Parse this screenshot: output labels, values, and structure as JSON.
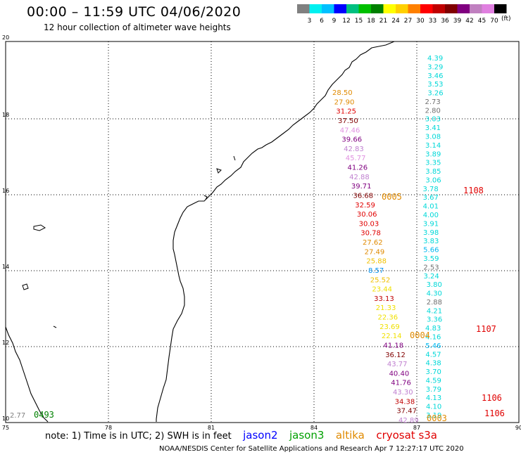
{
  "header": {
    "title": "00:00 – 11:59 UTC 04/06/2020",
    "subtitle": "12 hour collection of altimeter wave heights"
  },
  "legend": {
    "colors": [
      "#808080",
      "#00f0f0",
      "#00c0ff",
      "#0000ff",
      "#00c080",
      "#00c000",
      "#008000",
      "#ffff00",
      "#ffd000",
      "#ff8000",
      "#ff0000",
      "#c00000",
      "#800000",
      "#800080",
      "#c080c0",
      "#e080e0",
      "#000000"
    ],
    "labels": [
      "3",
      "6",
      "9",
      "12",
      "15",
      "18",
      "21",
      "24",
      "27",
      "30",
      "33",
      "36",
      "39",
      "42",
      "45",
      "70"
    ],
    "units": "(ft)"
  },
  "axes": {
    "x_ticks": [
      "75",
      "78",
      "81",
      "84",
      "87",
      "90"
    ],
    "y_ticks": [
      "10",
      "12",
      "14",
      "16",
      "18",
      "20"
    ]
  },
  "tracks": {
    "cryosat_s3a": [
      {
        "v": "4.39",
        "c": "#00d8d8"
      },
      {
        "v": "3.29",
        "c": "#00d8d8"
      },
      {
        "v": "3.46",
        "c": "#00d8d8"
      },
      {
        "v": "3.53",
        "c": "#00d8d8"
      },
      {
        "v": "3.26",
        "c": "#00d8d8"
      },
      {
        "v": "2.73",
        "c": "#707070"
      },
      {
        "v": "2.80",
        "c": "#707070"
      },
      {
        "v": "3.03",
        "c": "#00d8d8"
      },
      {
        "v": "3.41",
        "c": "#00d8d8"
      },
      {
        "v": "3.08",
        "c": "#00d8d8"
      },
      {
        "v": "3.14",
        "c": "#00d8d8"
      },
      {
        "v": "3.89",
        "c": "#00d8d8"
      },
      {
        "v": "3.35",
        "c": "#00d8d8"
      },
      {
        "v": "3.85",
        "c": "#00d8d8"
      },
      {
        "v": "3.06",
        "c": "#00d8d8"
      },
      {
        "v": "3.78",
        "c": "#00d8d8"
      },
      {
        "v": "3.67",
        "c": "#00d8d8"
      },
      {
        "v": "4.01",
        "c": "#00d8d8"
      },
      {
        "v": "4.00",
        "c": "#00d8d8"
      },
      {
        "v": "3.91",
        "c": "#00d8d8"
      },
      {
        "v": "3.98",
        "c": "#00d8d8"
      },
      {
        "v": "3.83",
        "c": "#00d8d8"
      },
      {
        "v": "5.66",
        "c": "#00b8f0"
      },
      {
        "v": "3.59",
        "c": "#00d8d8"
      },
      {
        "v": "2.53",
        "c": "#707070"
      },
      {
        "v": "3.24",
        "c": "#00d8d8"
      },
      {
        "v": "3.80",
        "c": "#00d8d8"
      },
      {
        "v": "4.30",
        "c": "#00d8d8"
      },
      {
        "v": "2.88",
        "c": "#707070"
      },
      {
        "v": "4.21",
        "c": "#00d8d8"
      },
      {
        "v": "3.36",
        "c": "#00d8d8"
      },
      {
        "v": "4.83",
        "c": "#00d8d8"
      },
      {
        "v": "4.16",
        "c": "#00d8d8"
      },
      {
        "v": "5.46",
        "c": "#00b8f0"
      },
      {
        "v": "4.57",
        "c": "#00d8d8"
      },
      {
        "v": "4.38",
        "c": "#00d8d8"
      },
      {
        "v": "3.70",
        "c": "#00d8d8"
      },
      {
        "v": "4.59",
        "c": "#00d8d8"
      },
      {
        "v": "3.79",
        "c": "#00d8d8"
      },
      {
        "v": "4.13",
        "c": "#00d8d8"
      },
      {
        "v": "4.10",
        "c": "#00d8d8"
      },
      {
        "v": "3.19",
        "c": "#00d8d8"
      }
    ],
    "altika": [
      {
        "v": "28.50",
        "c": "#e08a00"
      },
      {
        "v": "27.90",
        "c": "#e08a00"
      },
      {
        "v": "31.25",
        "c": "#e00000"
      },
      {
        "v": "37.50",
        "c": "#800000"
      },
      {
        "v": "47.46",
        "c": "#e090e0"
      },
      {
        "v": "39.66",
        "c": "#800080"
      },
      {
        "v": "42.83",
        "c": "#c080d0"
      },
      {
        "v": "45.77",
        "c": "#e090e0"
      },
      {
        "v": "41.26",
        "c": "#800080"
      },
      {
        "v": "42.88",
        "c": "#c080d0"
      },
      {
        "v": "39.71",
        "c": "#800080"
      },
      {
        "v": "36.68",
        "c": "#800000"
      },
      {
        "v": "32.59",
        "c": "#e00000"
      },
      {
        "v": "30.06",
        "c": "#e00000"
      },
      {
        "v": "30.03",
        "c": "#e00000"
      },
      {
        "v": "30.78",
        "c": "#e00000"
      },
      {
        "v": "27.62",
        "c": "#e08a00"
      },
      {
        "v": "27.49",
        "c": "#e08a00"
      },
      {
        "v": "25.88",
        "c": "#f0c000"
      },
      {
        "v": "8.57",
        "c": "#0090f0"
      },
      {
        "v": "25.52",
        "c": "#f0c000"
      },
      {
        "v": "23.44",
        "c": "#f0e000"
      },
      {
        "v": "33.13",
        "c": "#c00000"
      },
      {
        "v": "21.33",
        "c": "#f0e000"
      },
      {
        "v": "22.36",
        "c": "#f0e000"
      },
      {
        "v": "23.69",
        "c": "#f0e000"
      },
      {
        "v": "22.14",
        "c": "#f0e000"
      },
      {
        "v": "41.18",
        "c": "#800080"
      },
      {
        "v": "36.12",
        "c": "#800000"
      },
      {
        "v": "43.77",
        "c": "#c080d0"
      },
      {
        "v": "40.40",
        "c": "#800080"
      },
      {
        "v": "41.76",
        "c": "#800080"
      },
      {
        "v": "43.30",
        "c": "#c080d0"
      },
      {
        "v": "34.38",
        "c": "#c00000"
      },
      {
        "v": "37.47",
        "c": "#800000"
      },
      {
        "v": "42.89",
        "c": "#c080d0"
      }
    ],
    "left_value": {
      "v": "2.77",
      "c": "#808080"
    }
  },
  "pass_labels": [
    {
      "t": "1108",
      "c": "#e00000"
    },
    {
      "t": "1107",
      "c": "#e00000"
    },
    {
      "t": "1106",
      "c": "#e00000"
    },
    {
      "t": "1106",
      "c": "#e00000"
    },
    {
      "t": "0005",
      "c": "#e08a00"
    },
    {
      "t": "0004",
      "c": "#e08a00"
    },
    {
      "t": "0003",
      "c": "#e08a00"
    },
    {
      "t": "0493",
      "c": "#008000"
    }
  ],
  "footer": {
    "note": "note: 1) Time is in UTC; 2) SWH is in feet",
    "sat_jason2": "jason2",
    "sat_jason3": "jason3",
    "sat_altika": "altika",
    "sat_cryosat": "cryosat s3a",
    "credit": "NOAA/NESDIS Center for Satellite Applications and Research    Apr  7 12:27:17 UTC 2020"
  },
  "colors": {
    "jason2": "#0000ff",
    "jason3": "#00a000",
    "altika": "#e08a00",
    "cryosat": "#e00000"
  }
}
